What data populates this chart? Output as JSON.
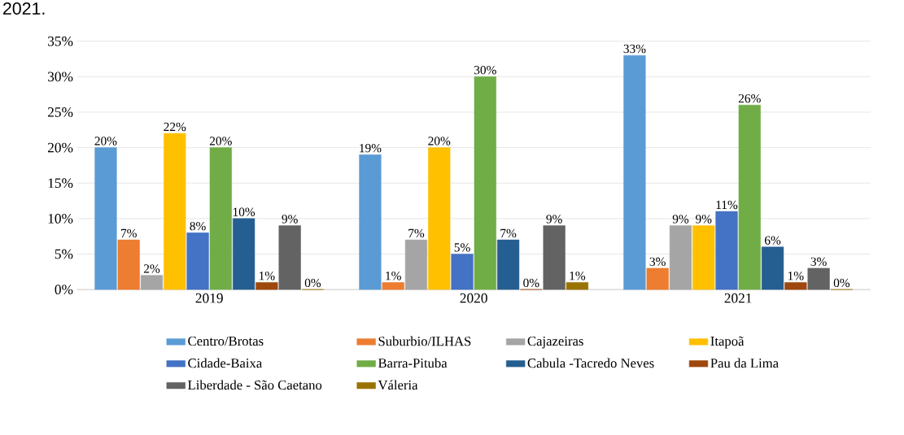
{
  "chart_data": {
    "type": "bar",
    "categories": [
      "2019",
      "2020",
      "2021"
    ],
    "series": [
      {
        "name": "Centro/Brotas",
        "color": "#5b9bd5",
        "values": [
          20,
          19,
          33
        ],
        "value_labels": [
          "20%",
          "19%",
          "33%"
        ]
      },
      {
        "name": "Suburbio/ILHAS",
        "color": "#ed7d31",
        "values": [
          7,
          1,
          3
        ],
        "value_labels": [
          "7%",
          "1%",
          "3%"
        ]
      },
      {
        "name": "Cajazeiras",
        "color": "#a5a5a5",
        "values": [
          2,
          7,
          9
        ],
        "value_labels": [
          "2%",
          "7%",
          "9%"
        ]
      },
      {
        "name": "Itapoã",
        "color": "#ffc000",
        "values": [
          22,
          20,
          9
        ],
        "value_labels": [
          "22%",
          "20%",
          "9%"
        ]
      },
      {
        "name": "Cidade-Baixa",
        "color": "#4472c4",
        "values": [
          8,
          5,
          11
        ],
        "value_labels": [
          "8%",
          "5%",
          "11%"
        ]
      },
      {
        "name": "Barra-Pituba",
        "color": "#70ad47",
        "values": [
          20,
          30,
          26
        ],
        "value_labels": [
          "20%",
          "30%",
          "26%"
        ]
      },
      {
        "name": "Cabula -Tacredo Neves",
        "color": "#255e91",
        "values": [
          10,
          7,
          6
        ],
        "value_labels": [
          "10%",
          "7%",
          "6%"
        ]
      },
      {
        "name": "Pau da Lima",
        "color": "#9e480e",
        "values": [
          1,
          0,
          1
        ],
        "value_labels": [
          "1%",
          "0%",
          "1%"
        ]
      },
      {
        "name": "Liberdade - São Caetano",
        "color": "#636363",
        "values": [
          9,
          9,
          3
        ],
        "value_labels": [
          "9%",
          "9%",
          "3%"
        ]
      },
      {
        "name": "Váleria",
        "color": "#997300",
        "values": [
          0,
          1,
          0
        ],
        "value_labels": [
          "0%",
          "1%",
          "0%"
        ]
      }
    ],
    "ylim": [
      0,
      35
    ],
    "yticks": [
      {
        "value": 0,
        "label": "0%"
      },
      {
        "value": 5,
        "label": "5%"
      },
      {
        "value": 10,
        "label": "10%"
      },
      {
        "value": 15,
        "label": "15%"
      },
      {
        "value": 20,
        "label": "20%"
      },
      {
        "value": 25,
        "label": "25%"
      },
      {
        "value": 30,
        "label": "30%"
      },
      {
        "value": 35,
        "label": "35%"
      }
    ],
    "grid": "y",
    "legend": "bottom",
    "annotations": [
      "2021."
    ]
  }
}
